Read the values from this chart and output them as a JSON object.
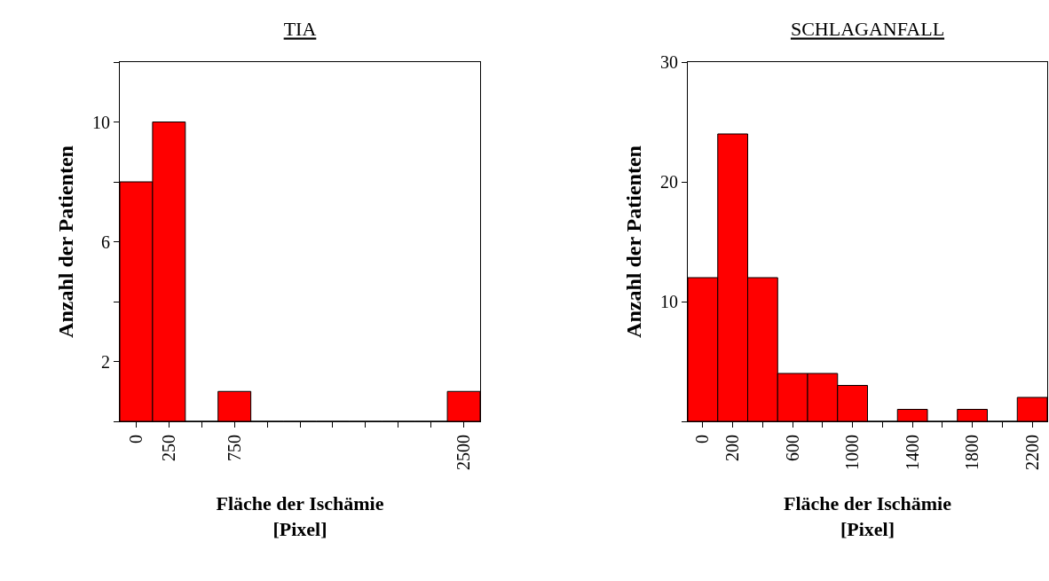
{
  "chart_data": [
    {
      "type": "histogram",
      "title": "TIA",
      "xlabel": "Fläche der Ischämie\n[Pixel]",
      "ylabel": "Anzahl der Patienten",
      "color": "#ff0000",
      "grid": false,
      "bins": [
        -125,
        125,
        375,
        625,
        875,
        1125,
        1375,
        1625,
        1875,
        2125,
        2375,
        2625
      ],
      "values": [
        8,
        10,
        0,
        1,
        0,
        0,
        0,
        0,
        0,
        0,
        1
      ],
      "xlim": [
        -125,
        2625
      ],
      "xticks": [
        0,
        250,
        {
          "value": 500,
          "label": null
        },
        750,
        {
          "value": 1000,
          "label": null
        },
        {
          "value": 1250,
          "label": null
        },
        {
          "value": 1500,
          "label": null
        },
        {
          "value": 1750,
          "label": null
        },
        {
          "value": 2000,
          "label": null
        },
        {
          "value": 2250,
          "label": null
        },
        2500
      ],
      "ylim": [
        0,
        12
      ],
      "yticks": [
        {
          "value": 0,
          "label": null
        },
        2,
        {
          "value": 4,
          "label": null
        },
        6,
        {
          "value": 8,
          "label": null
        },
        10,
        {
          "value": 12,
          "label": null
        }
      ]
    },
    {
      "type": "histogram",
      "title": "SCHLAGANFALL",
      "xlabel": "Fläche der Ischämie\n[Pixel]",
      "ylabel": "Anzahl der Patienten",
      "color": "#ff0000",
      "grid": false,
      "bins": [
        -100,
        100,
        300,
        500,
        700,
        900,
        1100,
        1300,
        1500,
        1700,
        1900,
        2100,
        2300
      ],
      "values": [
        12,
        24,
        12,
        4,
        4,
        3,
        0,
        1,
        0,
        1,
        0,
        2
      ],
      "xlim": [
        -100,
        2300
      ],
      "xticks": [
        0,
        200,
        {
          "value": 400,
          "label": null
        },
        600,
        {
          "value": 800,
          "label": null
        },
        1000,
        {
          "value": 1200,
          "label": null
        },
        1400,
        {
          "value": 1600,
          "label": null
        },
        1800,
        {
          "value": 2000,
          "label": null
        },
        2200
      ],
      "ylim": [
        0,
        30
      ],
      "yticks": [
        {
          "value": 0,
          "label": null
        },
        10,
        20,
        30
      ]
    }
  ]
}
